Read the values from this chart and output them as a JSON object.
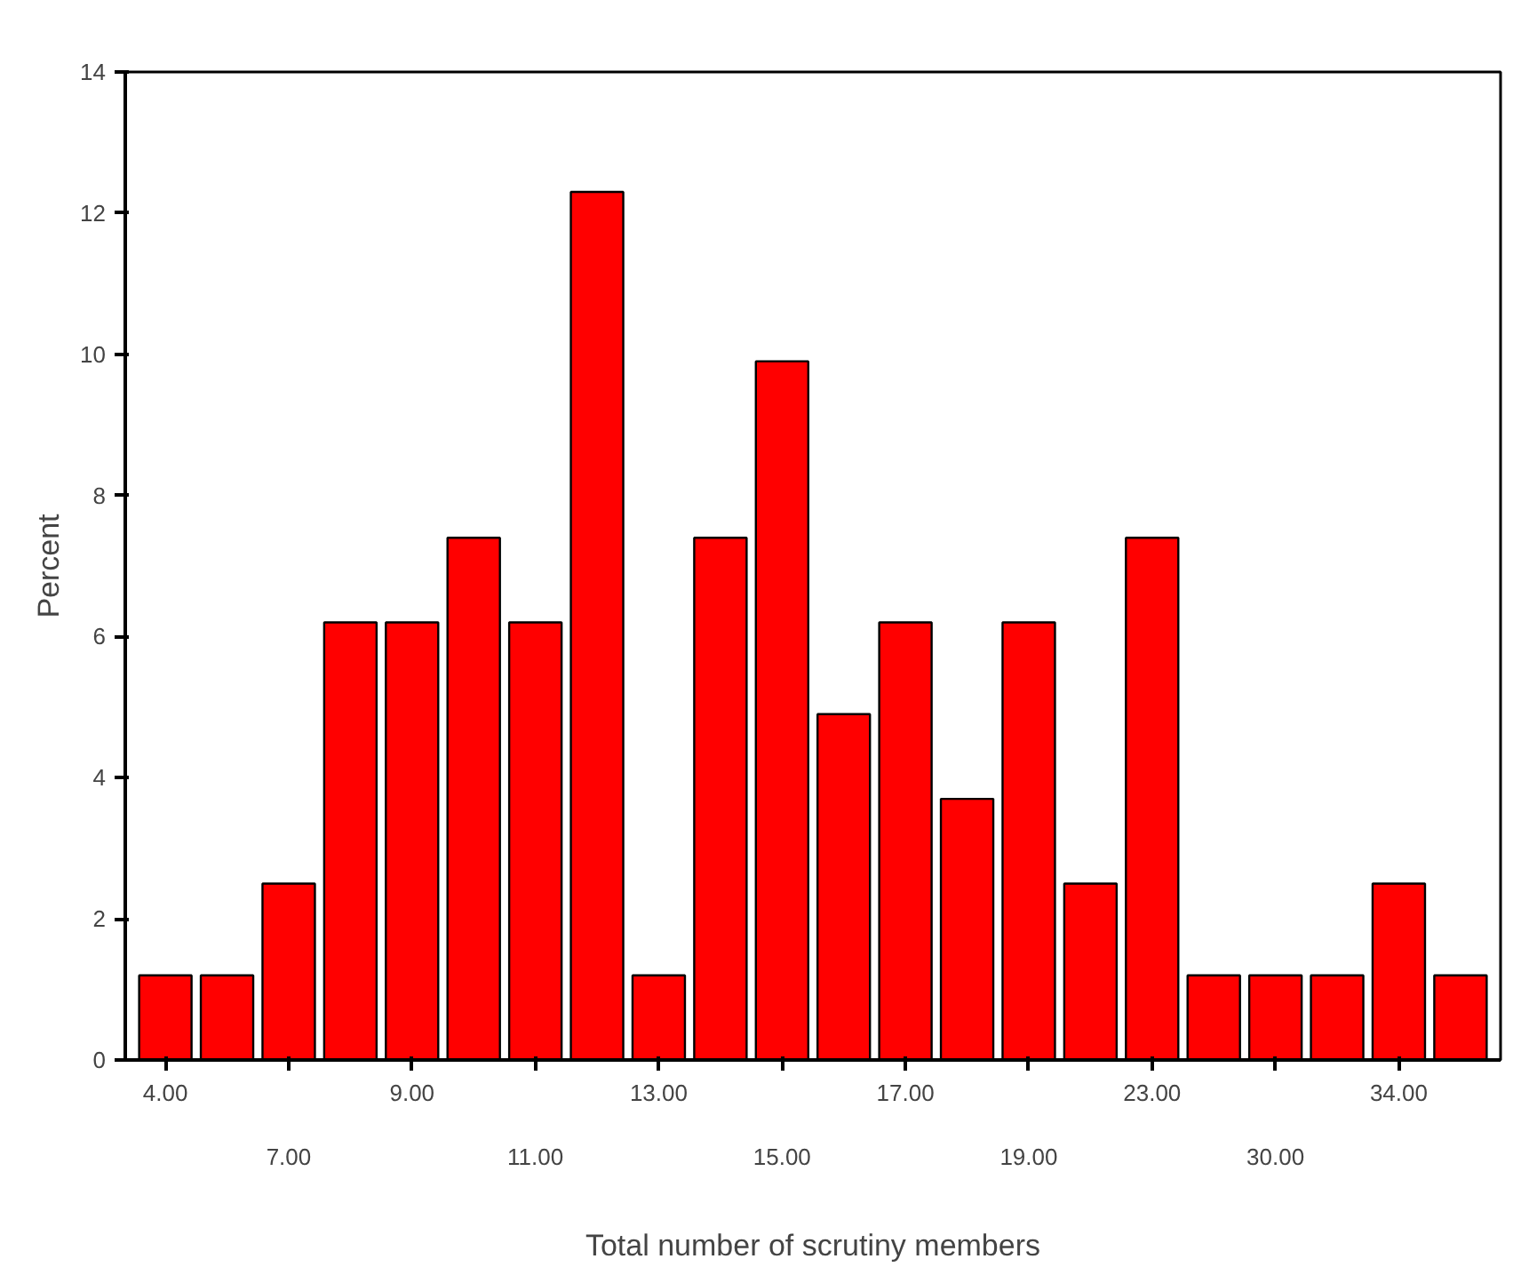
{
  "chart_data": {
    "type": "bar",
    "xlabel": "Total number of scrutiny members",
    "ylabel": "Percent",
    "categories": [
      "4.00",
      null,
      "7.00",
      null,
      "9.00",
      null,
      "11.00",
      null,
      "13.00",
      null,
      "15.00",
      null,
      "17.00",
      null,
      "19.00",
      null,
      "23.00",
      null,
      "30.00",
      null,
      "34.00",
      null
    ],
    "values": [
      1.2,
      1.2,
      2.5,
      6.2,
      6.2,
      7.4,
      6.2,
      12.3,
      1.2,
      7.4,
      9.9,
      4.9,
      6.2,
      3.7,
      6.2,
      2.5,
      7.4,
      1.2,
      1.2,
      1.2,
      2.5,
      1.2
    ],
    "color": "#ff0000",
    "ylim": [
      0,
      14
    ],
    "yticks": [
      0,
      2,
      4,
      6,
      8,
      10,
      12,
      14
    ],
    "grid": false
  }
}
